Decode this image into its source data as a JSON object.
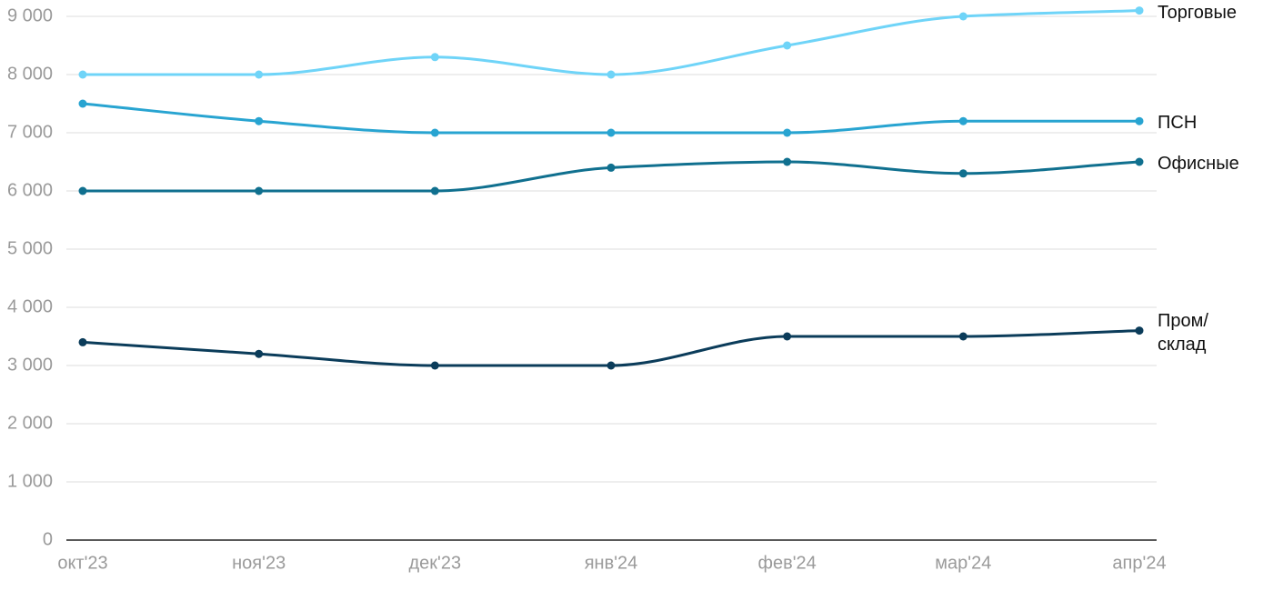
{
  "chart_data": {
    "type": "line",
    "categories": [
      "окт'23",
      "ноя'23",
      "дек'23",
      "янв'24",
      "фев'24",
      "мар'24",
      "апр'24"
    ],
    "series": [
      {
        "name": "Торговые",
        "color": "#6fd4f8",
        "values": [
          8000,
          8000,
          8300,
          8000,
          8500,
          9000,
          9100
        ]
      },
      {
        "name": "ПСН",
        "color": "#28a4d1",
        "values": [
          7500,
          7200,
          7000,
          7000,
          7000,
          7200,
          7200
        ]
      },
      {
        "name": "Офисные",
        "color": "#10708f",
        "values": [
          6000,
          6000,
          6000,
          6400,
          6500,
          6300,
          6500
        ]
      },
      {
        "name": "Пром/ склад",
        "color": "#0b3c5a",
        "values": [
          3400,
          3200,
          3000,
          3000,
          3500,
          3500,
          3600
        ]
      }
    ],
    "ylim": [
      0,
      9000
    ],
    "yticks": [
      0,
      {
        "value": 1000,
        "label": "1 000"
      },
      {
        "value": 2000,
        "label": "2 000"
      },
      {
        "value": 3000,
        "label": "3 000"
      },
      {
        "value": 4000,
        "label": "4 000"
      },
      {
        "value": 5000,
        "label": "5 000"
      },
      {
        "value": 6000,
        "label": "6 000"
      },
      {
        "value": 7000,
        "label": "7 000"
      },
      {
        "value": 8000,
        "label": "8 000"
      },
      {
        "value": 9000,
        "label": "9 000"
      }
    ],
    "grid": true,
    "smooth": true
  }
}
